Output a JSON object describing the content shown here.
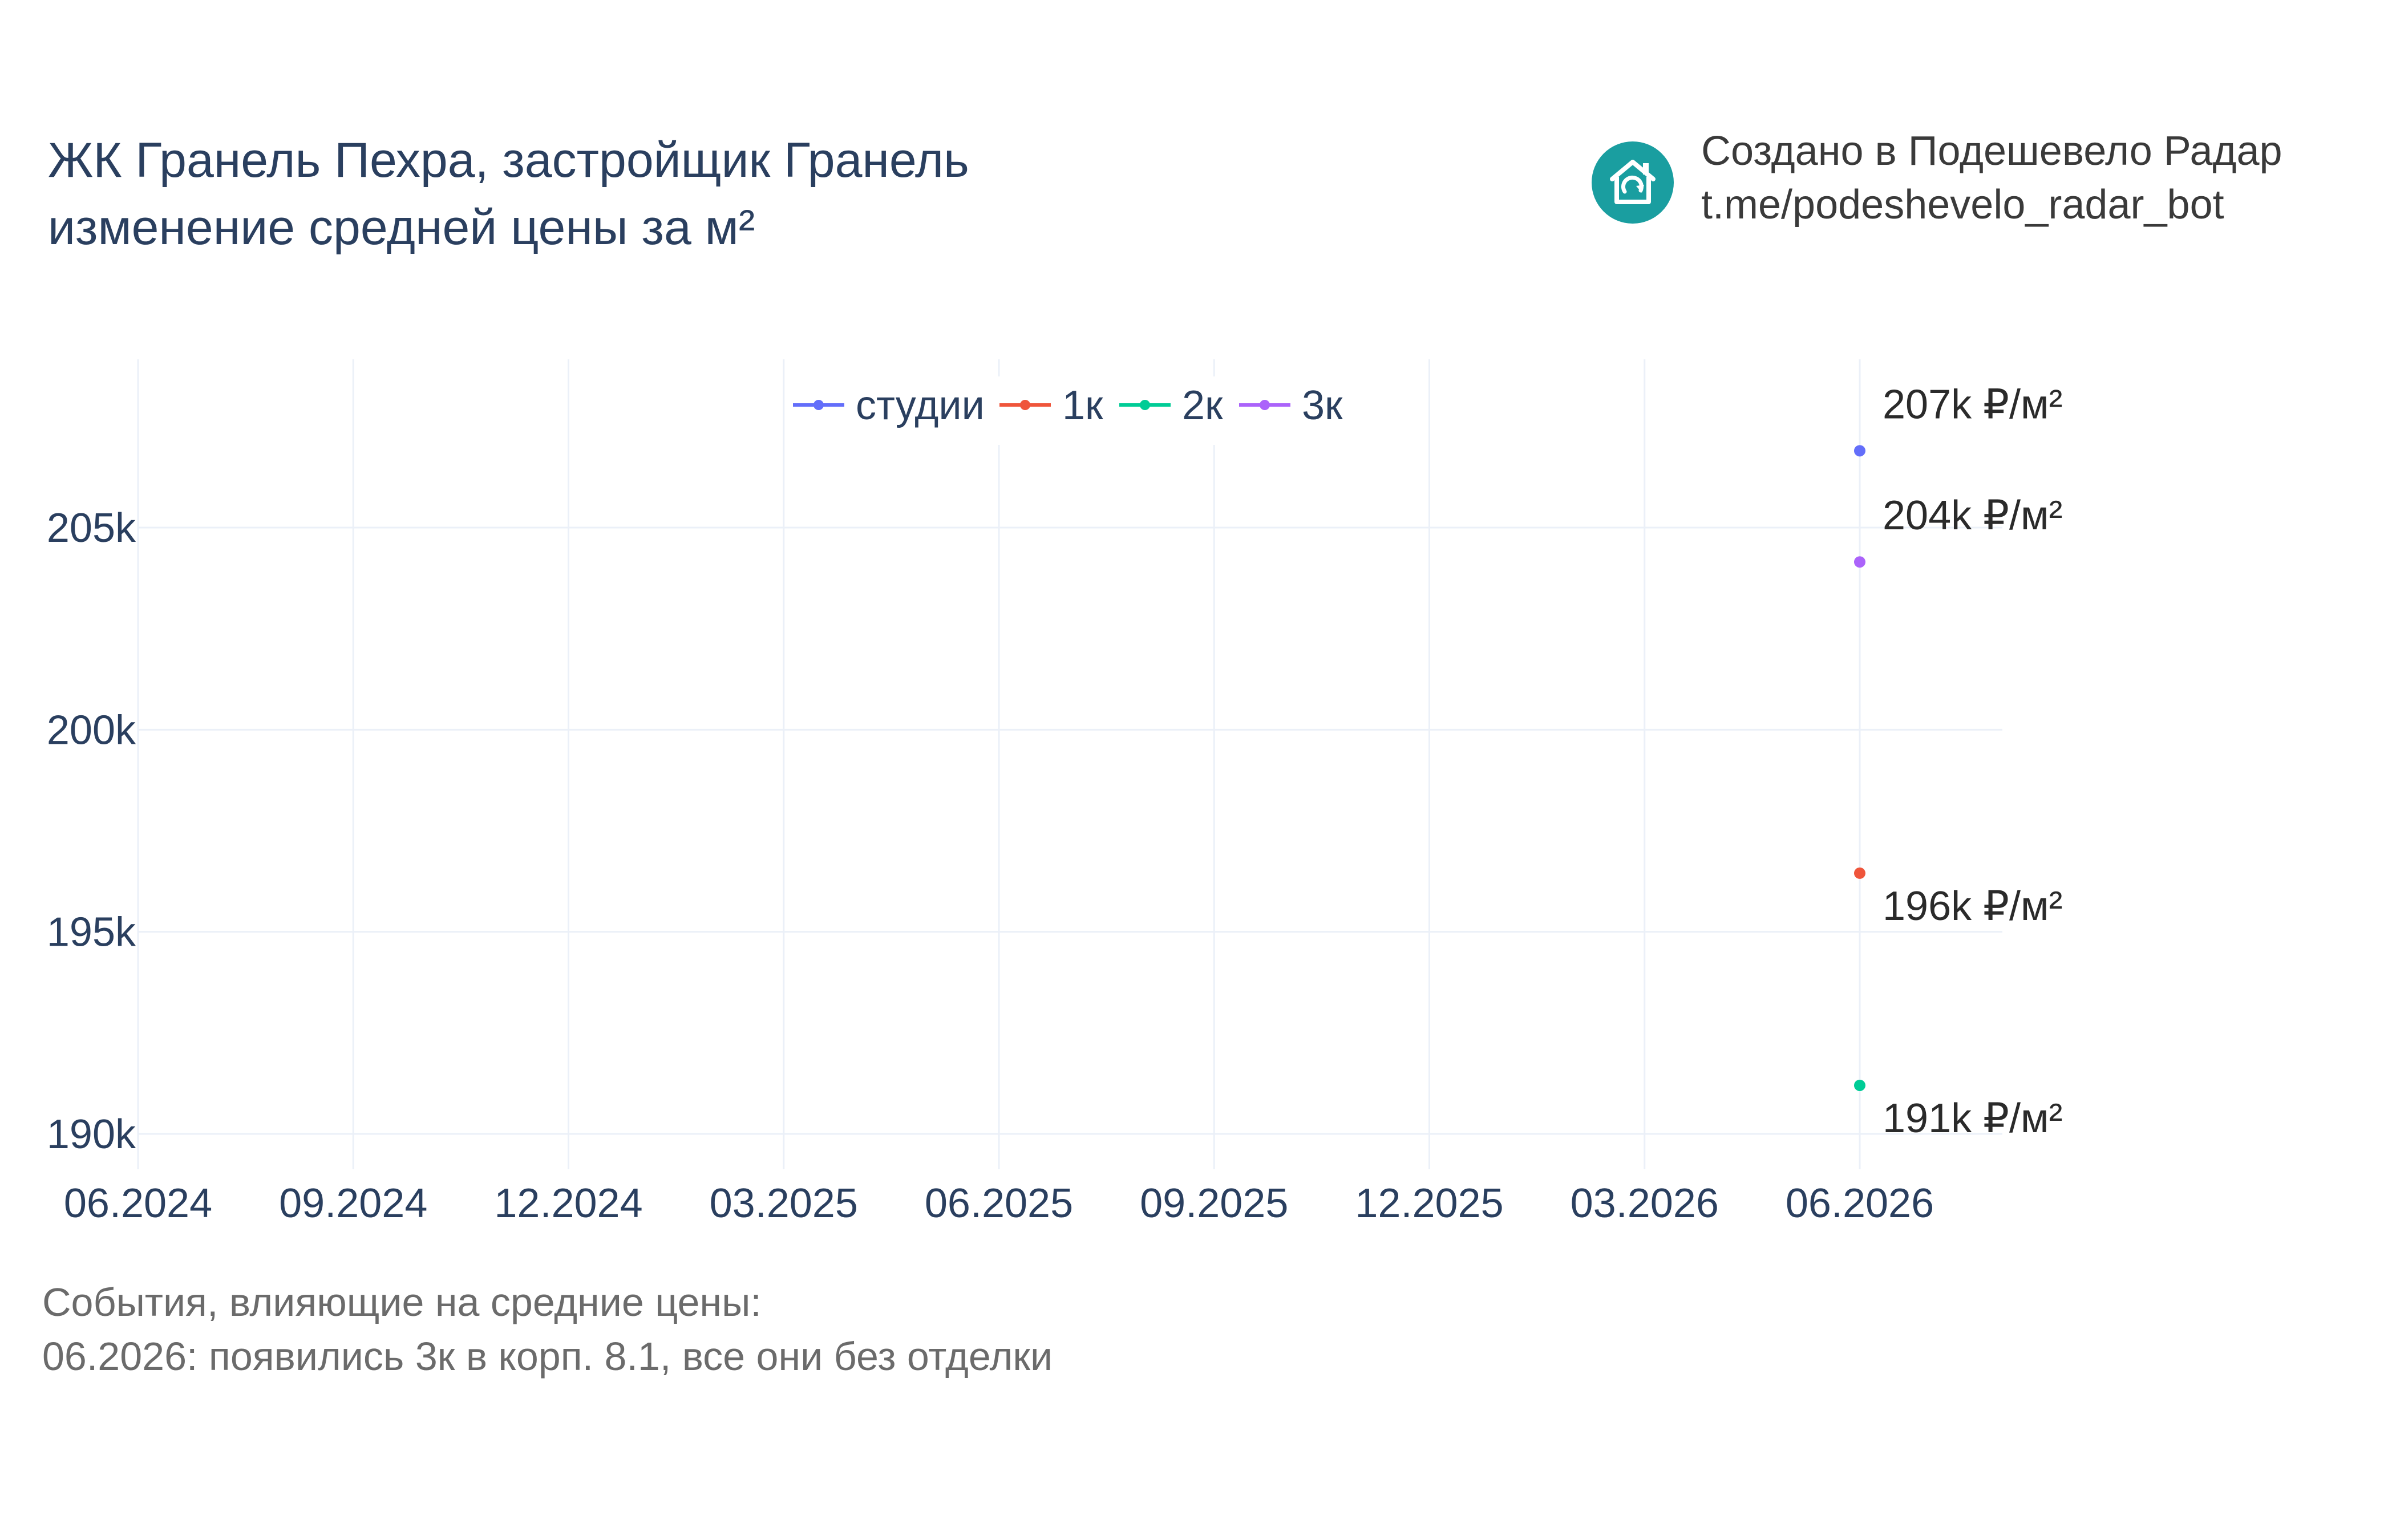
{
  "title": {
    "line1": "ЖК Гранель Пехра, застройщик Гранель",
    "line2": "изменение средней цены за м²"
  },
  "brand": {
    "logo_icon": "house-refresh-icon",
    "logo_color": "#1a9ea0",
    "line1": "Создано в Подешевело Радар",
    "line2": "t.me/podeshevelo_radar_bot"
  },
  "notes": {
    "heading": "События, влияющие на средние цены:",
    "items": [
      "06.2026: появились 3к в корп. 8.1, все они без отделки"
    ]
  },
  "chart_data": {
    "type": "scatter",
    "x_ticks": [
      "06.2024",
      "09.2024",
      "12.2024",
      "03.2025",
      "06.2025",
      "09.2025",
      "12.2025",
      "03.2026",
      "06.2026"
    ],
    "y_ticks": [
      {
        "value": 190000,
        "label": "190k"
      },
      {
        "value": 195000,
        "label": "195k"
      },
      {
        "value": 200000,
        "label": "200k"
      },
      {
        "value": 205000,
        "label": "205k"
      }
    ],
    "ylim": [
      189200,
      209100
    ],
    "grid": true,
    "legend_position": "top-center",
    "series": [
      {
        "name": "студии",
        "color": "#636efa",
        "points": [
          {
            "x": "06.2026",
            "y": 206900,
            "label": "207k ₽/м²",
            "label_side": "above"
          }
        ]
      },
      {
        "name": "1к",
        "color": "#ef553b",
        "points": [
          {
            "x": "06.2026",
            "y": 196450,
            "label": "196k ₽/м²",
            "label_side": "below"
          }
        ]
      },
      {
        "name": "2к",
        "color": "#00cc96",
        "points": [
          {
            "x": "06.2026",
            "y": 191200,
            "label": "191k ₽/м²",
            "label_side": "below"
          }
        ]
      },
      {
        "name": "3к",
        "color": "#ab63fa",
        "points": [
          {
            "x": "06.2026",
            "y": 204150,
            "label": "204k ₽/м²",
            "label_side": "above"
          }
        ]
      }
    ]
  }
}
